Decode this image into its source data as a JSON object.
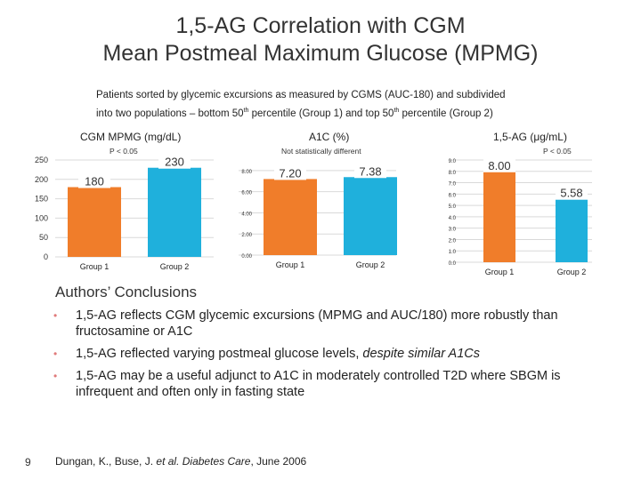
{
  "slide": {
    "title_line1": "1,5-AG Correlation with CGM",
    "title_line2": "Mean Postmeal Maximum Glucose (MPMG)",
    "subtitle_line1": "Patients sorted by glycemic excursions as measured by CGMS (AUC-180) and subdivided",
    "subtitle_line2_a": "into two populations – bottom 50",
    "subtitle_sup1": "th",
    "subtitle_line2_b": " percentile (Group 1) and top 50",
    "subtitle_sup2": "th",
    "subtitle_line2_c": " percentile (Group 2)",
    "conclusions_heading": "Authors’ Conclusions",
    "bullets": [
      "1,5-AG reflects CGM glycemic excursions (MPMG and AUC/180) more robustly than fructosamine or A1C",
      "1,5-AG reflected varying postmeal glucose levels, despite similar A1Cs",
      "1,5-AG may be a useful adjunct to A1C in moderately controlled T2D where SBGM is infrequent and often only in fasting state"
    ],
    "bullet2_plain": "1,5-AG reflected varying postmeal glucose levels, ",
    "bullet2_italic": "despite similar A1Cs",
    "bullet_marker": "•",
    "citation_plain": "Dungan, K., Buse, J. ",
    "citation_italic": "et al. Diabetes Care",
    "citation_end": ", June 2006",
    "page_number": "9"
  },
  "colors": {
    "group1": "#f07d2a",
    "group2": "#1fb0dc",
    "gridline": "#d9d9d9",
    "bullet": "#e07a7a"
  },
  "chart_data": [
    {
      "type": "bar",
      "title": "CGM MPMG (mg/dL)",
      "note": "P < 0.05",
      "categories": [
        "Group 1",
        "Group 2"
      ],
      "values": [
        180,
        230
      ],
      "value_labels": [
        "180",
        "230"
      ],
      "ylim": [
        0,
        250
      ],
      "yticks": [
        0,
        50,
        100,
        150,
        200,
        250
      ],
      "ytick_labels": [
        "0",
        "50",
        "100",
        "150",
        "200",
        "250"
      ],
      "grid": true
    },
    {
      "type": "bar",
      "title": "A1C (%)",
      "note": "Not statistically different",
      "categories": [
        "Group 1",
        "Group 2"
      ],
      "values": [
        7.2,
        7.38
      ],
      "value_labels": [
        "7.20",
        "7.38"
      ],
      "ylim": [
        0,
        9
      ],
      "yticks": [
        0,
        2,
        4,
        6,
        8
      ],
      "ytick_labels": [
        "0.00",
        "2.00",
        "4.00",
        "6.00",
        "8.00"
      ],
      "grid": true
    },
    {
      "type": "bar",
      "title": "1,5-AG (μg/mL)",
      "note": "P < 0.05",
      "categories": [
        "Group 1",
        "Group 2"
      ],
      "values": [
        8.0,
        5.58
      ],
      "value_labels": [
        "8.00",
        "5.58"
      ],
      "ylim": [
        0,
        9
      ],
      "yticks": [
        0,
        1,
        2,
        3,
        4,
        5,
        6,
        7,
        8,
        9
      ],
      "ytick_labels": [
        "0.0",
        "1.0",
        "2.0",
        "3.0",
        "4.0",
        "5.0",
        "6.0",
        "7.0",
        "8.0",
        "9.0"
      ],
      "grid": true
    }
  ]
}
